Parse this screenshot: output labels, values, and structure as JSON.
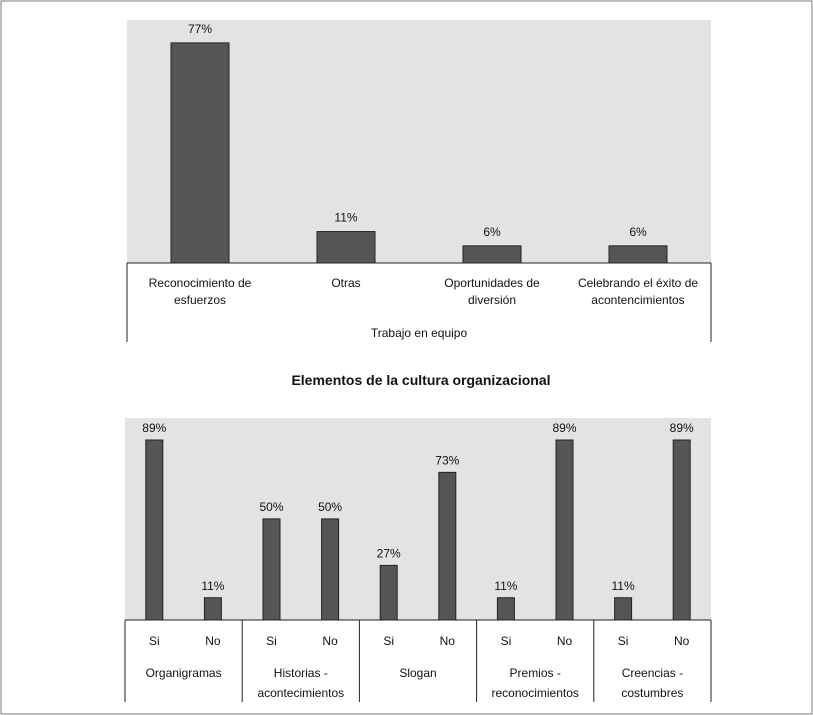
{
  "colors": {
    "plot_bg": "#e3e3e3",
    "bar": "#555555",
    "bar_stroke": "#222222",
    "axis": "#222222",
    "frame": "#7a7a7a"
  },
  "chart_data": [
    {
      "type": "bar",
      "categories": [
        [
          "Reconocimiento  de",
          "esfuerzos"
        ],
        [
          "Otras"
        ],
        [
          "Oportunidades  de",
          "diversión"
        ],
        [
          "Celebrando el éxito de",
          "acontencimientos"
        ]
      ],
      "values": [
        77,
        11,
        6,
        6
      ],
      "value_labels": [
        "77%",
        "11%",
        "6%",
        "6%"
      ],
      "group_label": "Trabajo en equipo",
      "title": "",
      "ylim": [
        0,
        85
      ],
      "grid": false,
      "legend": "none"
    },
    {
      "type": "bar",
      "title": "Elementos de la cultura organizacional",
      "groups": [
        {
          "label": [
            "Organigramas"
          ],
          "bars": [
            {
              "label": "Si",
              "value": 89,
              "value_label": "89%"
            },
            {
              "label": "No",
              "value": 11,
              "value_label": "11%"
            }
          ]
        },
        {
          "label": [
            "Historias  -",
            "acontecimientos"
          ],
          "bars": [
            {
              "label": "Si",
              "value": 50,
              "value_label": "50%"
            },
            {
              "label": "No",
              "value": 50,
              "value_label": "50%"
            }
          ]
        },
        {
          "label": [
            "Slogan"
          ],
          "bars": [
            {
              "label": "Si",
              "value": 27,
              "value_label": "27%"
            },
            {
              "label": "No",
              "value": 73,
              "value_label": "73%"
            }
          ]
        },
        {
          "label": [
            "Premios  -",
            "reconocimientos"
          ],
          "bars": [
            {
              "label": "Si",
              "value": 11,
              "value_label": "11%"
            },
            {
              "label": "No",
              "value": 89,
              "value_label": "89%"
            }
          ]
        },
        {
          "label": [
            "Creencias  -",
            "costumbres"
          ],
          "bars": [
            {
              "label": "Si",
              "value": 11,
              "value_label": "11%"
            },
            {
              "label": "No",
              "value": 89,
              "value_label": "89%"
            }
          ]
        }
      ],
      "ylim": [
        0,
        95
      ],
      "grid": false,
      "legend": "none"
    }
  ]
}
